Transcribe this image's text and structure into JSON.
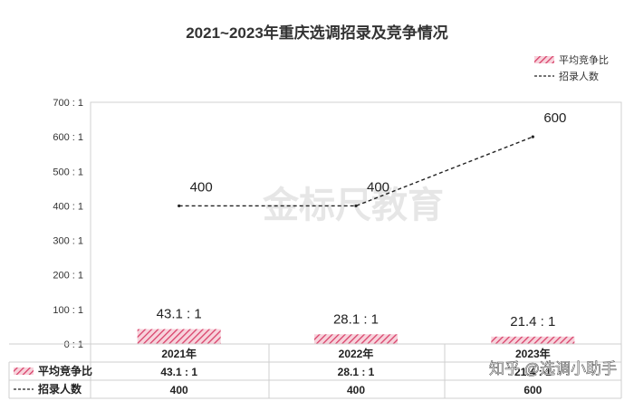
{
  "chart_data": {
    "type": "bar",
    "title": "2021~2023年重庆选调招录及竞争情况",
    "categories": [
      "2021年",
      "2022年",
      "2023年"
    ],
    "y_ticks": [
      "0 : 1",
      "100 : 1",
      "200 : 1",
      "300 : 1",
      "400 : 1",
      "500 : 1",
      "600 : 1",
      "700 : 1"
    ],
    "ylim": [
      0,
      700
    ],
    "legend_position": "top-right",
    "series": [
      {
        "name": "平均竞争比",
        "mark": "bar",
        "color": "#e06a85",
        "values": [
          43.1,
          28.1,
          21.4
        ],
        "labels": [
          "43.1 : 1",
          "28.1 : 1",
          "21.4 : 1"
        ]
      },
      {
        "name": "招录人数",
        "mark": "dashed-line",
        "color": "#222222",
        "values": [
          400,
          400,
          600
        ],
        "labels": [
          "400",
          "400",
          "600"
        ]
      }
    ]
  },
  "watermark_text": "金标尺教育",
  "overlay_text": "知乎 @选调小助手"
}
